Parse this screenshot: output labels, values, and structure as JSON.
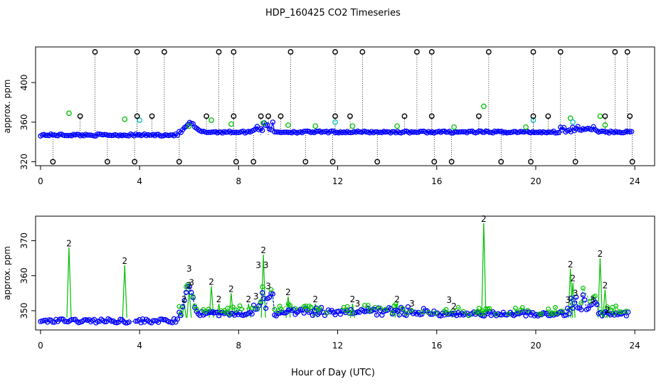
{
  "title": "HDP_160425  CO2 Timeseries",
  "xlabel": "Hour of Day (UTC)",
  "colors": {
    "black": "#000000",
    "green": "#00c000",
    "blue": "#0000ff",
    "cyan": "#00c0c0"
  },
  "chart_data": [
    {
      "type": "scatter",
      "panel": "top",
      "ylabel": "approx. ppm",
      "xlim": [
        -0.2,
        24.8
      ],
      "ylim": [
        316,
        436
      ],
      "xticks": [
        "0",
        "4",
        "8",
        "12",
        "16",
        "20",
        "24"
      ],
      "xtick_values": [
        0,
        4,
        8,
        12,
        16,
        20,
        24
      ],
      "yticks": [
        "320",
        "360",
        "400"
      ],
      "ytick_values": [
        320,
        360,
        400
      ],
      "baseline": 347,
      "black_spikes": [
        {
          "x": 0.5,
          "y": 320
        },
        {
          "x": 1.6,
          "y": 366
        },
        {
          "x": 2.2,
          "y": 431
        },
        {
          "x": 2.7,
          "y": 320
        },
        {
          "x": 3.8,
          "y": 320
        },
        {
          "x": 3.9,
          "y": 366
        },
        {
          "x": 3.9,
          "y": 431
        },
        {
          "x": 4.5,
          "y": 366
        },
        {
          "x": 5.0,
          "y": 431
        },
        {
          "x": 5.6,
          "y": 320
        },
        {
          "x": 6.7,
          "y": 366
        },
        {
          "x": 7.2,
          "y": 431
        },
        {
          "x": 7.8,
          "y": 431
        },
        {
          "x": 7.8,
          "y": 366
        },
        {
          "x": 7.9,
          "y": 320
        },
        {
          "x": 8.6,
          "y": 320
        },
        {
          "x": 8.9,
          "y": 366
        },
        {
          "x": 9.2,
          "y": 366
        },
        {
          "x": 9.7,
          "y": 366
        },
        {
          "x": 10.1,
          "y": 431
        },
        {
          "x": 10.7,
          "y": 320
        },
        {
          "x": 11.8,
          "y": 320
        },
        {
          "x": 11.9,
          "y": 366
        },
        {
          "x": 11.9,
          "y": 431
        },
        {
          "x": 12.5,
          "y": 366
        },
        {
          "x": 13.0,
          "y": 431
        },
        {
          "x": 13.6,
          "y": 320
        },
        {
          "x": 14.7,
          "y": 366
        },
        {
          "x": 15.2,
          "y": 431
        },
        {
          "x": 15.8,
          "y": 431
        },
        {
          "x": 15.8,
          "y": 366
        },
        {
          "x": 15.9,
          "y": 320
        },
        {
          "x": 16.6,
          "y": 320
        },
        {
          "x": 17.7,
          "y": 366
        },
        {
          "x": 18.1,
          "y": 431
        },
        {
          "x": 18.6,
          "y": 320
        },
        {
          "x": 19.8,
          "y": 320
        },
        {
          "x": 19.9,
          "y": 366
        },
        {
          "x": 19.9,
          "y": 431
        },
        {
          "x": 20.5,
          "y": 366
        },
        {
          "x": 21.0,
          "y": 431
        },
        {
          "x": 21.6,
          "y": 320
        },
        {
          "x": 22.8,
          "y": 366
        },
        {
          "x": 23.2,
          "y": 431
        },
        {
          "x": 23.7,
          "y": 431
        },
        {
          "x": 23.8,
          "y": 366
        },
        {
          "x": 23.9,
          "y": 320
        }
      ],
      "green_points": [
        {
          "x": 1.15,
          "y": 369
        },
        {
          "x": 3.4,
          "y": 363
        },
        {
          "x": 6.0,
          "y": 356
        },
        {
          "x": 6.9,
          "y": 362
        },
        {
          "x": 7.7,
          "y": 358
        },
        {
          "x": 9.0,
          "y": 359
        },
        {
          "x": 10.0,
          "y": 357
        },
        {
          "x": 11.1,
          "y": 356
        },
        {
          "x": 12.6,
          "y": 356
        },
        {
          "x": 14.4,
          "y": 356
        },
        {
          "x": 16.7,
          "y": 355
        },
        {
          "x": 17.9,
          "y": 376
        },
        {
          "x": 19.6,
          "y": 355
        },
        {
          "x": 21.4,
          "y": 364
        },
        {
          "x": 22.6,
          "y": 366
        },
        {
          "x": 22.8,
          "y": 357
        }
      ],
      "cyan_points": [
        {
          "x": 4.0,
          "y": 362
        },
        {
          "x": 11.9,
          "y": 360
        },
        {
          "x": 19.9,
          "y": 362
        },
        {
          "x": 21.5,
          "y": 360
        }
      ]
    },
    {
      "type": "scatter",
      "panel": "bottom",
      "ylabel": "approx. ppm",
      "xlim": [
        -0.2,
        24.8
      ],
      "ylim": [
        344.5,
        377
      ],
      "xticks": [
        "0",
        "4",
        "8",
        "12",
        "16",
        "20",
        "24"
      ],
      "xtick_values": [
        0,
        4,
        8,
        12,
        16,
        20,
        24
      ],
      "yticks": [
        "350",
        "360",
        "370"
      ],
      "ytick_values": [
        350,
        360,
        370
      ],
      "green_label": "2",
      "blue_label": "3",
      "green_points": [
        {
          "x": 1.15,
          "y": 368
        },
        {
          "x": 3.4,
          "y": 363
        },
        {
          "x": 5.8,
          "y": 352
        },
        {
          "x": 6.0,
          "y": 356
        },
        {
          "x": 6.9,
          "y": 357
        },
        {
          "x": 7.2,
          "y": 352
        },
        {
          "x": 7.7,
          "y": 355
        },
        {
          "x": 8.4,
          "y": 352
        },
        {
          "x": 9.0,
          "y": 366
        },
        {
          "x": 10.0,
          "y": 354
        },
        {
          "x": 11.1,
          "y": 352
        },
        {
          "x": 12.6,
          "y": 352
        },
        {
          "x": 14.4,
          "y": 352
        },
        {
          "x": 16.7,
          "y": 350
        },
        {
          "x": 17.9,
          "y": 375
        },
        {
          "x": 21.4,
          "y": 362
        },
        {
          "x": 21.5,
          "y": 358
        },
        {
          "x": 22.6,
          "y": 365
        },
        {
          "x": 22.8,
          "y": 356
        },
        {
          "x": 22.9,
          "y": 349
        }
      ],
      "blue_points": [
        {
          "x": 6.0,
          "y": 362
        },
        {
          "x": 6.1,
          "y": 358
        },
        {
          "x": 8.7,
          "y": 354
        },
        {
          "x": 8.8,
          "y": 363
        },
        {
          "x": 9.1,
          "y": 363
        },
        {
          "x": 9.2,
          "y": 357
        },
        {
          "x": 12.8,
          "y": 352
        },
        {
          "x": 15.0,
          "y": 352
        },
        {
          "x": 16.5,
          "y": 353
        },
        {
          "x": 21.3,
          "y": 353
        },
        {
          "x": 21.6,
          "y": 355
        },
        {
          "x": 22.3,
          "y": 353
        }
      ]
    }
  ]
}
